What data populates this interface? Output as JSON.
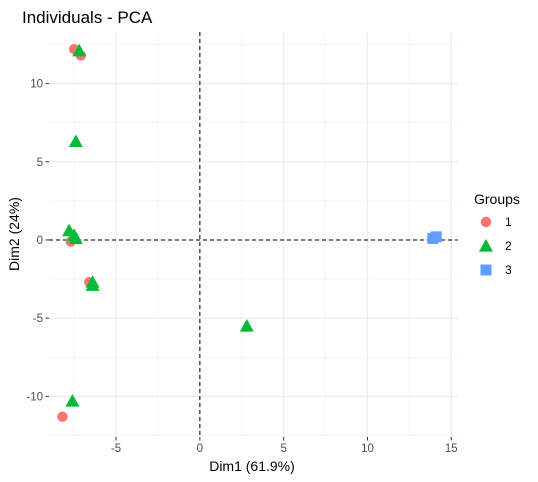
{
  "chart_data": {
    "type": "scatter",
    "title": "Individuals - PCA",
    "xlabel": "Dim1 (61.9%)",
    "ylabel": "Dim2 (24%)",
    "xlim": [
      -9,
      15.4
    ],
    "ylim": [
      -12.6,
      13.3
    ],
    "xticks": [
      -5,
      0,
      5,
      10,
      15
    ],
    "yticks": [
      -10,
      -5,
      0,
      5,
      10
    ],
    "x_tick_labels": [
      "-5",
      "0",
      "5",
      "10",
      "15"
    ],
    "y_tick_labels": [
      "-10",
      "-5",
      "0",
      "5",
      "10"
    ],
    "grid": true,
    "reference_lines": {
      "x": 0,
      "y": 0,
      "style": "dashed"
    },
    "legend": {
      "title": "Groups",
      "position": "right"
    },
    "series": [
      {
        "name": "1",
        "marker": "circle",
        "color": "#F8766D",
        "points": [
          {
            "x": -7.5,
            "y": 12.2
          },
          {
            "x": -7.1,
            "y": 11.8
          },
          {
            "x": -7.7,
            "y": -0.1
          },
          {
            "x": -6.6,
            "y": -2.7
          },
          {
            "x": -8.2,
            "y": -11.3
          }
        ]
      },
      {
        "name": "2",
        "marker": "triangle",
        "color": "#00BA38",
        "points": [
          {
            "x": -7.2,
            "y": 12.1
          },
          {
            "x": -7.4,
            "y": 6.3
          },
          {
            "x": -7.8,
            "y": 0.6
          },
          {
            "x": -7.5,
            "y": 0.3
          },
          {
            "x": -7.4,
            "y": 0.1
          },
          {
            "x": -6.4,
            "y": -2.7
          },
          {
            "x": -6.4,
            "y": -2.9
          },
          {
            "x": 2.8,
            "y": -5.5
          },
          {
            "x": -7.6,
            "y": -10.3
          }
        ]
      },
      {
        "name": "3",
        "marker": "square",
        "color": "#619CFF",
        "points": [
          {
            "x": 13.9,
            "y": 0.1
          },
          {
            "x": 14.1,
            "y": 0.2
          }
        ]
      }
    ]
  }
}
